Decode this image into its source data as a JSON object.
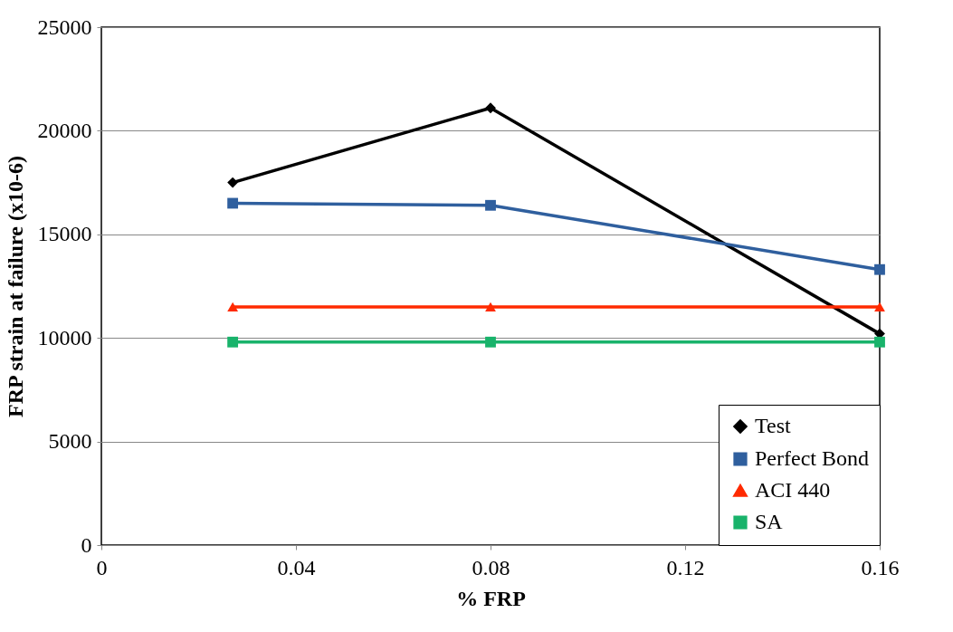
{
  "chart_data": {
    "type": "line",
    "xlabel": "% FRP",
    "ylabel": "FRP strain at failure (x10-6)",
    "x": [
      0.027,
      0.08,
      0.16
    ],
    "series": [
      {
        "name": "Test",
        "color": "#000000",
        "marker": "diamond",
        "values": [
          17500,
          21100,
          10200
        ]
      },
      {
        "name": "Perfect Bond",
        "color": "#2f5f9e",
        "marker": "square",
        "values": [
          16500,
          16400,
          13300
        ]
      },
      {
        "name": "ACI 440",
        "color": "#ff2a00",
        "marker": "triangle",
        "values": [
          11500,
          11500,
          11500
        ]
      },
      {
        "name": "SA",
        "color": "#19b36b",
        "marker": "square",
        "values": [
          9800,
          9800,
          9800
        ]
      }
    ],
    "xlim": [
      0,
      0.16
    ],
    "xticks": [
      0,
      0.04,
      0.08,
      0.12,
      0.16
    ],
    "ylim": [
      0,
      25000
    ],
    "yticks": [
      0,
      5000,
      10000,
      15000,
      20000,
      25000
    ],
    "grid": "y",
    "legend": "bottom right",
    "line_style": "solid"
  }
}
